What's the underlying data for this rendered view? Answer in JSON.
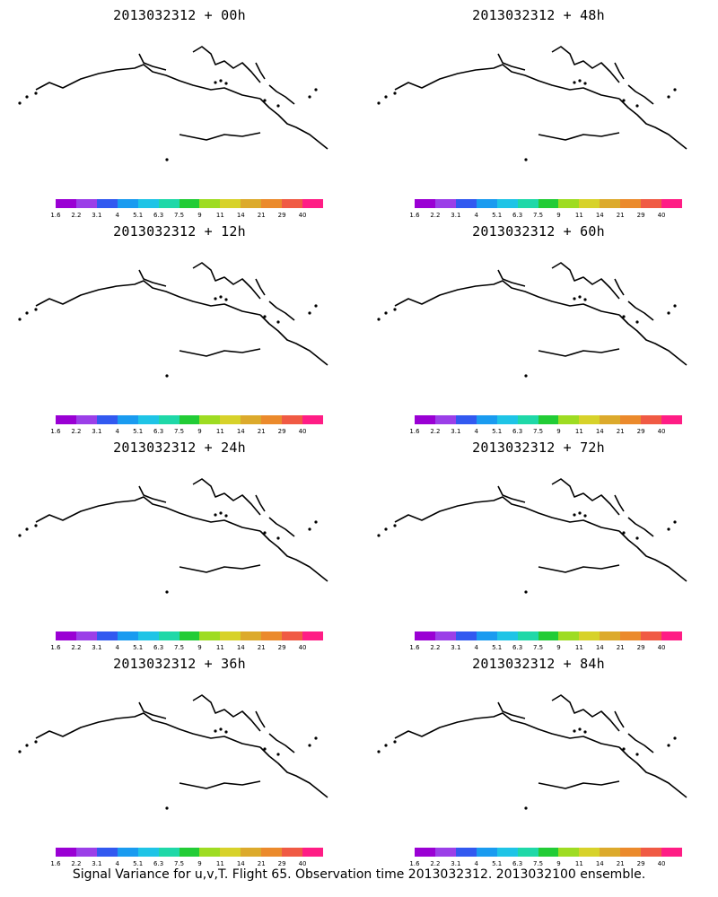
{
  "footer": "Signal Variance for u,v,T. Flight 65. Observation time 2013032312. 2013032100 ensemble.",
  "colorbar": {
    "colors": [
      "#9a00d4",
      "#9b3fe8",
      "#3259f0",
      "#1a9bf0",
      "#1fc4e6",
      "#1fd8a8",
      "#22cc36",
      "#9edc22",
      "#d7d22a",
      "#dcaa2c",
      "#eb8a2c",
      "#f05a44",
      "#ff1d85"
    ],
    "labels": [
      "1.6",
      "2.2",
      "3.1",
      "4",
      "5.1",
      "6.3",
      "7.5",
      "9",
      "11",
      "14",
      "21",
      "29",
      "40"
    ]
  },
  "panels": [
    {
      "title": "2013032312 + 00h",
      "intensity": 0
    },
    {
      "title": "2013032312 + 48h",
      "intensity": 4
    },
    {
      "title": "2013032312 + 12h",
      "intensity": 1
    },
    {
      "title": "2013032312 + 60h",
      "intensity": 5
    },
    {
      "title": "2013032312 + 24h",
      "intensity": 2
    },
    {
      "title": "2013032312 + 72h",
      "intensity": 6
    },
    {
      "title": "2013032312 + 36h",
      "intensity": 3
    },
    {
      "title": "2013032312 + 84h",
      "intensity": 7
    }
  ]
}
